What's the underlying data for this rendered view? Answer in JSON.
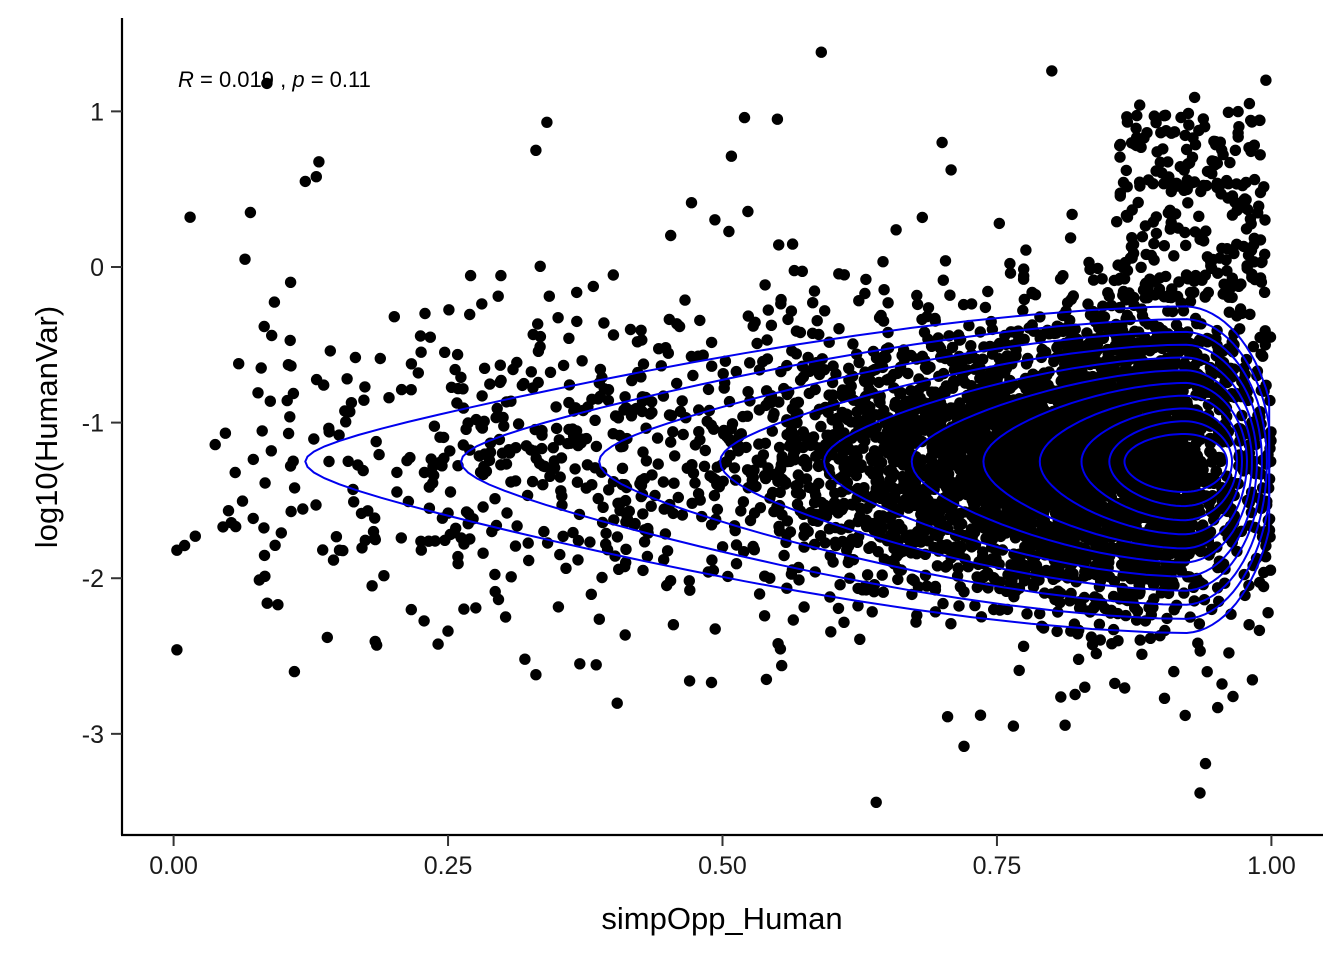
{
  "chart_data": {
    "type": "scatter",
    "xlabel": "simpOpp_Human",
    "ylabel": "log10(HumanVar)",
    "xlim": [
      -0.047,
      1.047
    ],
    "ylim": [
      -3.65,
      1.6
    ],
    "x_ticks": [
      0,
      0.25,
      0.5,
      0.75,
      1
    ],
    "x_tick_labels": [
      "0.00",
      "0.25",
      "0.50",
      "0.75",
      "1.00"
    ],
    "y_ticks": [
      1,
      0,
      -1,
      -2,
      -3
    ],
    "y_tick_labels": [
      "1",
      "0",
      "-1",
      "-2",
      "-3"
    ],
    "grid": false,
    "annotation": {
      "r_label": "R",
      "r_text": " = 0.019 , ",
      "p_label": "p",
      "p_text": " = 0.11"
    },
    "colors": {
      "points": "#000000",
      "contours": "#0000ee",
      "axis": "#000000"
    },
    "point_cloud": {
      "description": "approx. 5,000 gene points; dense cluster near x=0.92, y=-1.25",
      "outliers": [
        [
          0.59,
          1.38
        ],
        [
          0.8,
          1.26
        ],
        [
          0.085,
          1.18
        ],
        [
          0.995,
          1.2
        ],
        [
          0.98,
          1.05
        ],
        [
          0.88,
          1.04
        ],
        [
          0.93,
          1.09
        ],
        [
          0.52,
          0.96
        ],
        [
          0.55,
          0.95
        ],
        [
          0.34,
          0.93
        ],
        [
          0.33,
          0.75
        ],
        [
          0.7,
          0.8
        ],
        [
          0.13,
          0.58
        ],
        [
          0.12,
          0.55
        ],
        [
          0.015,
          0.32
        ],
        [
          0.07,
          0.35
        ],
        [
          0.065,
          0.05
        ],
        [
          0.003,
          -2.46
        ],
        [
          0.01,
          -1.79
        ],
        [
          0.003,
          -1.82
        ],
        [
          0.045,
          -1.67
        ],
        [
          0.11,
          -2.6
        ],
        [
          0.095,
          -2.17
        ],
        [
          0.64,
          -3.44
        ],
        [
          0.935,
          -3.38
        ],
        [
          0.72,
          -3.08
        ],
        [
          0.705,
          -2.89
        ],
        [
          0.765,
          -2.95
        ],
        [
          0.735,
          -2.88
        ],
        [
          0.83,
          -2.7
        ],
        [
          0.47,
          -2.66
        ],
        [
          0.49,
          -2.67
        ],
        [
          0.33,
          -2.62
        ],
        [
          0.32,
          -2.52
        ],
        [
          0.37,
          -2.55
        ],
        [
          0.25,
          -2.34
        ],
        [
          0.14,
          -2.38
        ],
        [
          0.185,
          -2.43
        ],
        [
          0.965,
          -2.76
        ],
        [
          0.955,
          -2.68
        ]
      ]
    },
    "density_contours": {
      "levels": 11,
      "center": [
        0.92,
        -1.25
      ]
    }
  }
}
